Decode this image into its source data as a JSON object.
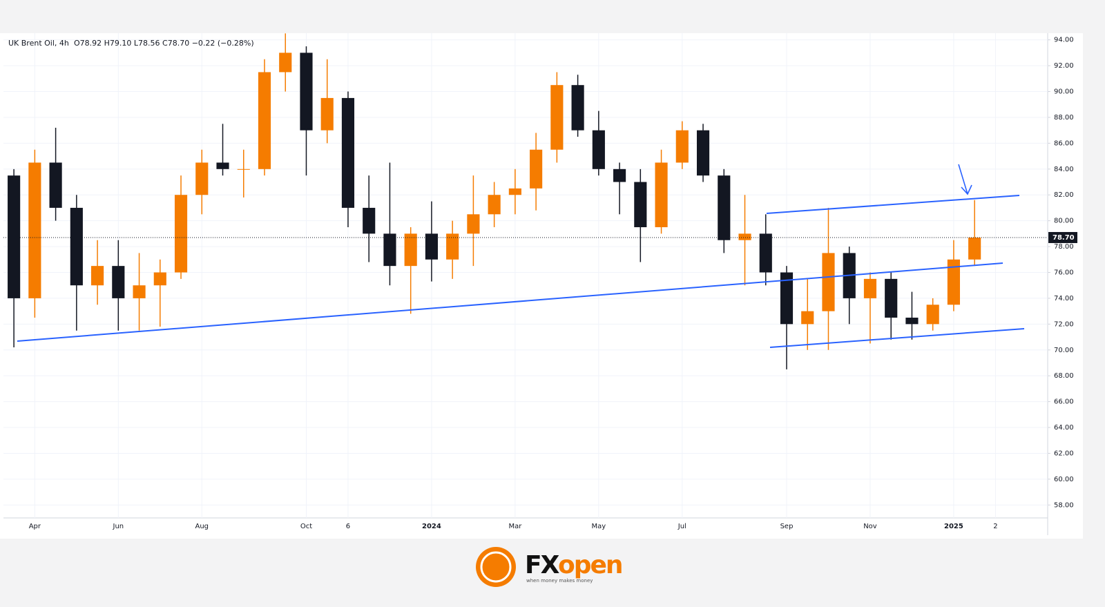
{
  "chart_data": {
    "type": "candlestick",
    "title": "UK Brent Oil, 4h",
    "header": "O78.92  H79.10  L78.56  C78.70  −0.22 (−0.28%)",
    "categories": [
      null,
      "Apr",
      null,
      null,
      null,
      "Jun",
      null,
      null,
      null,
      "Aug",
      null,
      null,
      null,
      null,
      "Oct",
      null,
      "6",
      null,
      null,
      null,
      "2024",
      null,
      null,
      null,
      "Mar",
      null,
      null,
      null,
      "May",
      null,
      null,
      null,
      "Jul",
      null,
      null,
      null,
      null,
      "Sep",
      null,
      null,
      null,
      "Nov",
      null,
      null,
      null,
      "2025",
      null,
      "2",
      null,
      null
    ],
    "open": [
      83.5,
      74,
      84.5,
      81,
      75,
      76.5,
      74,
      75,
      76,
      82,
      84.5,
      84,
      84,
      91.5,
      93,
      87,
      89.5,
      81,
      79,
      76.5,
      79,
      77,
      79,
      80.5,
      82,
      82.5,
      85.5,
      90.5,
      87,
      84,
      83,
      79.5,
      84.5,
      87,
      83.5,
      78.5,
      79,
      76,
      72,
      73,
      77.5,
      74,
      75.5,
      72.5,
      72,
      73.5,
      77,
      null,
      null,
      null
    ],
    "high": [
      84,
      85.5,
      87.2,
      82,
      78.5,
      78.5,
      77.5,
      77,
      83.5,
      85.5,
      87.5,
      85.5,
      92.5,
      94.5,
      93.5,
      92.5,
      90,
      83.5,
      84.5,
      79.5,
      81.5,
      80,
      83.5,
      83,
      84,
      86.8,
      91.5,
      91.3,
      88.5,
      84.5,
      84,
      85.5,
      87.7,
      87.5,
      84,
      82,
      80.5,
      76.5,
      75.5,
      81,
      78,
      76,
      76,
      74.5,
      74,
      78.5,
      81.6,
      null,
      null,
      null
    ],
    "low": [
      70.2,
      72.5,
      80,
      71.5,
      73.5,
      71.5,
      71.5,
      71.8,
      75.5,
      80.5,
      83.5,
      81.8,
      83.5,
      90,
      83.5,
      86,
      79.5,
      76.8,
      75,
      72.8,
      75.3,
      75.5,
      76.5,
      79.5,
      80.5,
      80.8,
      84.5,
      86.5,
      83.5,
      80.5,
      76.8,
      79,
      84,
      83,
      77.5,
      75,
      75,
      68.5,
      70,
      70,
      72,
      70.5,
      70.8,
      70.8,
      71.5,
      73,
      76.5,
      null,
      null,
      null
    ],
    "close": [
      74,
      84.5,
      81,
      75,
      76.5,
      74,
      75,
      76,
      82,
      84.5,
      84,
      84,
      91.5,
      93,
      87,
      89.5,
      81,
      79,
      76.5,
      79,
      77,
      79,
      80.5,
      82,
      82.5,
      85.5,
      90.5,
      87,
      84,
      83,
      79.5,
      84.5,
      87,
      83.5,
      78.5,
      79,
      76,
      72,
      73,
      77.5,
      74,
      75.5,
      72.5,
      72,
      73.5,
      77,
      78.7,
      null,
      null,
      null
    ],
    "up_color": "#f57c00",
    "down_color": "#131722",
    "ylim": [
      57,
      95
    ],
    "yticks": [
      {
        "value": 58,
        "label": "58.00"
      },
      {
        "value": 60,
        "label": "60.00"
      },
      {
        "value": 62,
        "label": "62.00"
      },
      {
        "value": 64,
        "label": "64.00"
      },
      {
        "value": 66,
        "label": "66.00"
      },
      {
        "value": 68,
        "label": "68.00"
      },
      {
        "value": 70,
        "label": "70.00"
      },
      {
        "value": 72,
        "label": "72.00"
      },
      {
        "value": 74,
        "label": "74.00"
      },
      {
        "value": 76,
        "label": "76.00"
      },
      {
        "value": 78,
        "label": "78.00"
      },
      {
        "value": 80,
        "label": "80.00"
      },
      {
        "value": 82,
        "label": "82.00"
      },
      {
        "value": 84,
        "label": "84.00"
      },
      {
        "value": 86,
        "label": "86.00"
      },
      {
        "value": 88,
        "label": "88.00"
      },
      {
        "value": 90,
        "label": "90.00"
      },
      {
        "value": 92,
        "label": "92.00"
      },
      {
        "value": 94,
        "label": "94.00"
      }
    ],
    "last_price": {
      "value": 78.7,
      "label": "78.70"
    },
    "grid": true
  },
  "logo": {
    "brand": [
      "FX",
      "open"
    ],
    "tagline": "when money makes money"
  }
}
